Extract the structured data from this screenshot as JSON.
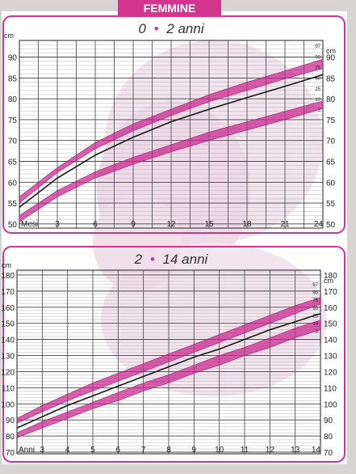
{
  "header": {
    "title": "FEMMINE"
  },
  "colors": {
    "band": "#c8248e",
    "median": "#1a1a1a",
    "frame": "#d2348e",
    "title": "#d2348e",
    "grid": "#444444",
    "paper": "#ffffff",
    "photo": "#ead0e0"
  },
  "chart_data": [
    {
      "type": "line",
      "title": "0 • 2 anni",
      "title_parts": [
        "0",
        "•",
        "2 anni"
      ],
      "unit_label": "cm",
      "x_axis_unit": "Mesi",
      "x": [
        0,
        3,
        6,
        9,
        12,
        15,
        18,
        21,
        24
      ],
      "x_ticks": [
        "3",
        "6",
        "9",
        "12",
        "15",
        "18",
        "21",
        "24"
      ],
      "xlim": [
        0,
        24
      ],
      "y_ticks": [
        50,
        55,
        60,
        65,
        70,
        75,
        80,
        85,
        90
      ],
      "ylim": [
        49,
        94
      ],
      "grid": true,
      "percentile_labels": [
        "97",
        "90",
        "75",
        "50",
        "25",
        "10",
        "3"
      ],
      "series": [
        {
          "name": "97",
          "role": "upper-band-top",
          "values": [
            56.5,
            63.5,
            69.5,
            74.0,
            77.5,
            81.0,
            84.0,
            86.7,
            89.5
          ]
        },
        {
          "name": "90",
          "role": "upper-band-bottom",
          "values": [
            55.0,
            62.3,
            68.0,
            72.3,
            76.0,
            79.3,
            82.0,
            84.8,
            87.3
          ]
        },
        {
          "name": "50",
          "role": "median",
          "values": [
            54.0,
            61.0,
            66.5,
            70.8,
            74.5,
            77.5,
            80.3,
            83.0,
            85.8
          ]
        },
        {
          "name": "10",
          "role": "lower-band-top",
          "values": [
            52.0,
            58.0,
            62.5,
            66.0,
            69.0,
            72.0,
            74.5,
            77.0,
            79.5
          ]
        },
        {
          "name": "3",
          "role": "lower-band-bottom",
          "values": [
            50.5,
            56.5,
            61.0,
            64.3,
            67.3,
            70.0,
            72.5,
            75.0,
            77.7
          ]
        }
      ]
    },
    {
      "type": "line",
      "title": "2 • 14 anni",
      "title_parts": [
        "2",
        "•",
        "14 anni"
      ],
      "unit_label": "cm",
      "x_axis_unit": "Anni",
      "x": [
        2,
        3,
        4,
        5,
        6,
        7,
        8,
        9,
        10,
        11,
        12,
        13,
        14
      ],
      "x_ticks": [
        "3",
        "4",
        "5",
        "6",
        "7",
        "8",
        "9",
        "10",
        "11",
        "12",
        "13",
        "14"
      ],
      "xlim": [
        2,
        14
      ],
      "y_ticks": [
        70,
        80,
        90,
        100,
        110,
        120,
        130,
        140,
        150,
        160,
        170,
        180
      ],
      "ylim": [
        69,
        183
      ],
      "grid": true,
      "percentile_labels": [
        "97",
        "90",
        "75",
        "50",
        "25",
        "10",
        "3"
      ],
      "series": [
        {
          "name": "97",
          "role": "upper-band-top",
          "values": [
            91,
            99,
            106,
            113,
            119,
            125,
            131,
            137,
            143,
            149,
            155,
            161,
            166
          ]
        },
        {
          "name": "75",
          "role": "upper-band-bottom",
          "values": [
            88,
            95,
            102,
            108,
            114,
            120,
            126,
            132,
            138,
            144,
            150,
            156,
            162
          ]
        },
        {
          "name": "50",
          "role": "median",
          "values": [
            85,
            92,
            99,
            105,
            111,
            117,
            123,
            129,
            134,
            140,
            146,
            151,
            156
          ]
        },
        {
          "name": "25",
          "role": "lower-band-top",
          "values": [
            82,
            89,
            95,
            101,
            107,
            113,
            118,
            124,
            130,
            135,
            141,
            147,
            152
          ]
        },
        {
          "name": "3",
          "role": "lower-band-bottom",
          "values": [
            79,
            85,
            91,
            97,
            102,
            108,
            113,
            119,
            124,
            130,
            135,
            141,
            146
          ]
        }
      ]
    }
  ]
}
